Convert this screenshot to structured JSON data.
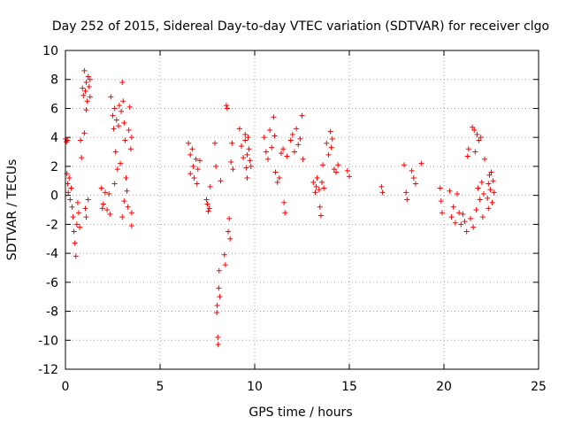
{
  "chart_data": {
    "type": "scatter",
    "title": "Day 252 of 2015, Sidereal Day-to-day VTEC variation (SDTVAR) for receiver clgo",
    "xlabel": "GPS time / hours",
    "ylabel": "SDTVAR / TECUs",
    "xlim": [
      0,
      25
    ],
    "ylim": [
      -12,
      10
    ],
    "xticks": [
      0,
      5,
      10,
      15,
      20,
      25
    ],
    "yticks": [
      -12,
      -10,
      -8,
      -6,
      -4,
      -2,
      0,
      2,
      4,
      6,
      8,
      10
    ],
    "grid": true,
    "marker": "+",
    "marker_color": "#ff0000",
    "series": [
      {
        "name": "SDTVAR",
        "points": [
          [
            0.0,
            3.9
          ],
          [
            0.05,
            3.7
          ],
          [
            0.1,
            3.8
          ],
          [
            0.08,
            1.5
          ],
          [
            0.12,
            0.8
          ],
          [
            0.15,
            0.2
          ],
          [
            0.2,
            1.2
          ],
          [
            0.25,
            -0.3
          ],
          [
            0.3,
            0.5
          ],
          [
            0.35,
            -0.8
          ],
          [
            0.4,
            -1.5
          ],
          [
            0.45,
            -2.5
          ],
          [
            0.5,
            -3.3
          ],
          [
            0.55,
            -4.2
          ],
          [
            0.6,
            -2.0
          ],
          [
            0.65,
            -0.5
          ],
          [
            0.7,
            -1.2
          ],
          [
            0.75,
            -2.2
          ],
          [
            0.8,
            3.8
          ],
          [
            0.85,
            2.6
          ],
          [
            0.9,
            7.4
          ],
          [
            0.95,
            6.9
          ],
          [
            1.0,
            8.6
          ],
          [
            1.05,
            7.2
          ],
          [
            1.1,
            7.8
          ],
          [
            1.15,
            6.5
          ],
          [
            1.2,
            8.2
          ],
          [
            1.25,
            7.5
          ],
          [
            1.3,
            6.8
          ],
          [
            1.0,
            4.3
          ],
          [
            1.1,
            5.9
          ],
          [
            1.3,
            8.0
          ],
          [
            1.05,
            -0.9
          ],
          [
            1.1,
            -1.5
          ],
          [
            1.2,
            -0.3
          ],
          [
            1.9,
            0.5
          ],
          [
            2.0,
            -0.6
          ],
          [
            2.1,
            0.2
          ],
          [
            2.2,
            -1.0
          ],
          [
            2.3,
            0.1
          ],
          [
            2.35,
            -1.3
          ],
          [
            1.95,
            -0.9
          ],
          [
            2.4,
            6.8
          ],
          [
            2.5,
            5.5
          ],
          [
            2.55,
            4.6
          ],
          [
            2.6,
            6.0
          ],
          [
            2.65,
            3.0
          ],
          [
            2.7,
            5.2
          ],
          [
            2.75,
            1.8
          ],
          [
            2.8,
            4.8
          ],
          [
            2.85,
            6.2
          ],
          [
            2.9,
            2.2
          ],
          [
            2.95,
            5.8
          ],
          [
            3.0,
            7.8
          ],
          [
            3.05,
            6.5
          ],
          [
            3.1,
            5.0
          ],
          [
            3.15,
            3.8
          ],
          [
            3.2,
            1.2
          ],
          [
            3.25,
            0.3
          ],
          [
            3.3,
            -0.8
          ],
          [
            3.35,
            4.5
          ],
          [
            3.4,
            6.1
          ],
          [
            3.45,
            3.2
          ],
          [
            3.5,
            4.0
          ],
          [
            3.0,
            -1.5
          ],
          [
            3.1,
            -0.4
          ],
          [
            2.6,
            0.8
          ],
          [
            3.5,
            -1.2
          ],
          [
            3.5,
            -2.1
          ],
          [
            6.5,
            3.6
          ],
          [
            6.6,
            2.8
          ],
          [
            6.7,
            3.2
          ],
          [
            6.75,
            2.0
          ],
          [
            6.8,
            1.2
          ],
          [
            6.9,
            2.5
          ],
          [
            6.95,
            0.8
          ],
          [
            7.0,
            1.8
          ],
          [
            6.6,
            1.5
          ],
          [
            7.1,
            2.4
          ],
          [
            7.45,
            -0.3
          ],
          [
            7.5,
            -0.6
          ],
          [
            7.55,
            -1.1
          ],
          [
            7.6,
            -0.9
          ],
          [
            7.65,
            0.6
          ],
          [
            7.9,
            3.6
          ],
          [
            7.95,
            2.0
          ],
          [
            8.0,
            -8.1
          ],
          [
            8.02,
            -7.6
          ],
          [
            8.05,
            -9.8
          ],
          [
            8.07,
            -10.3
          ],
          [
            8.1,
            -6.4
          ],
          [
            8.12,
            -5.2
          ],
          [
            8.15,
            -7.0
          ],
          [
            8.2,
            1.0
          ],
          [
            8.4,
            -4.1
          ],
          [
            8.45,
            -4.8
          ],
          [
            8.5,
            6.2
          ],
          [
            8.55,
            6.0
          ],
          [
            8.6,
            -2.5
          ],
          [
            8.65,
            -1.6
          ],
          [
            8.7,
            -3.0
          ],
          [
            8.75,
            2.3
          ],
          [
            8.8,
            3.6
          ],
          [
            8.85,
            1.8
          ],
          [
            9.2,
            4.6
          ],
          [
            9.3,
            3.4
          ],
          [
            9.4,
            2.6
          ],
          [
            9.5,
            3.8
          ],
          [
            9.55,
            1.9
          ],
          [
            9.6,
            2.8
          ],
          [
            9.65,
            4.0
          ],
          [
            9.7,
            3.2
          ],
          [
            9.75,
            2.4
          ],
          [
            9.8,
            2.0
          ],
          [
            9.5,
            4.2
          ],
          [
            9.6,
            1.2
          ],
          [
            10.5,
            4.0
          ],
          [
            10.6,
            3.0
          ],
          [
            10.7,
            2.5
          ],
          [
            10.8,
            4.5
          ],
          [
            10.9,
            3.3
          ],
          [
            11.0,
            5.4
          ],
          [
            11.05,
            4.1
          ],
          [
            11.1,
            1.6
          ],
          [
            11.2,
            0.9
          ],
          [
            11.3,
            1.2
          ],
          [
            11.4,
            2.9
          ],
          [
            11.5,
            3.2
          ],
          [
            11.55,
            -0.5
          ],
          [
            11.6,
            -1.2
          ],
          [
            11.7,
            2.7
          ],
          [
            11.9,
            3.8
          ],
          [
            12.0,
            4.2
          ],
          [
            12.1,
            3.0
          ],
          [
            12.2,
            4.6
          ],
          [
            12.3,
            3.5
          ],
          [
            12.4,
            3.9
          ],
          [
            12.5,
            5.5
          ],
          [
            12.55,
            2.5
          ],
          [
            13.1,
            0.9
          ],
          [
            13.2,
            0.2
          ],
          [
            13.25,
            0.6
          ],
          [
            13.3,
            1.2
          ],
          [
            13.4,
            0.4
          ],
          [
            13.45,
            -0.8
          ],
          [
            13.5,
            -1.4
          ],
          [
            13.55,
            0.9
          ],
          [
            13.6,
            2.1
          ],
          [
            13.65,
            0.5
          ],
          [
            13.8,
            3.6
          ],
          [
            13.9,
            2.8
          ],
          [
            14.0,
            4.4
          ],
          [
            14.05,
            3.3
          ],
          [
            14.1,
            3.9
          ],
          [
            14.2,
            1.8
          ],
          [
            14.3,
            1.6
          ],
          [
            14.4,
            2.1
          ],
          [
            14.9,
            1.7
          ],
          [
            15.0,
            1.3
          ],
          [
            16.7,
            0.6
          ],
          [
            16.75,
            0.2
          ],
          [
            17.9,
            2.1
          ],
          [
            18.0,
            0.2
          ],
          [
            18.05,
            -0.3
          ],
          [
            18.3,
            1.7
          ],
          [
            18.4,
            1.2
          ],
          [
            18.5,
            0.8
          ],
          [
            18.8,
            2.2
          ],
          [
            19.8,
            0.5
          ],
          [
            19.85,
            -0.4
          ],
          [
            19.9,
            -1.2
          ],
          [
            20.3,
            0.3
          ],
          [
            20.4,
            -1.5
          ],
          [
            20.5,
            -0.8
          ],
          [
            20.6,
            -1.9
          ],
          [
            20.7,
            0.1
          ],
          [
            20.8,
            -1.2
          ],
          [
            20.9,
            -2.0
          ],
          [
            21.0,
            -1.3
          ],
          [
            21.1,
            -1.8
          ],
          [
            21.2,
            -2.5
          ],
          [
            21.25,
            2.7
          ],
          [
            21.3,
            3.2
          ],
          [
            21.4,
            -1.6
          ],
          [
            21.5,
            4.7
          ],
          [
            21.55,
            -2.2
          ],
          [
            21.6,
            4.5
          ],
          [
            21.65,
            3.0
          ],
          [
            21.7,
            -1.0
          ],
          [
            21.75,
            4.2
          ],
          [
            21.8,
            0.5
          ],
          [
            21.85,
            3.8
          ],
          [
            21.9,
            -0.3
          ],
          [
            21.95,
            4.0
          ],
          [
            22.0,
            0.9
          ],
          [
            22.05,
            -1.5
          ],
          [
            22.1,
            0.1
          ],
          [
            22.15,
            2.5
          ],
          [
            22.3,
            -0.2
          ],
          [
            22.35,
            0.8
          ],
          [
            22.4,
            1.4
          ],
          [
            22.45,
            0.4
          ],
          [
            22.5,
            1.6
          ],
          [
            22.55,
            -0.5
          ],
          [
            22.6,
            1.0
          ],
          [
            22.65,
            0.2
          ],
          [
            22.35,
            -0.9
          ]
        ]
      }
    ]
  }
}
